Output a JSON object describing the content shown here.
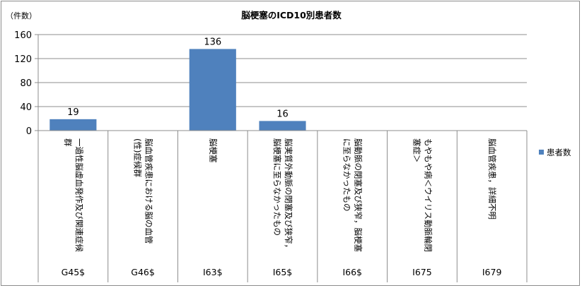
{
  "chart_data": {
    "type": "bar",
    "title": "脳梗塞のICD10別患者数",
    "yunit": "（件数）",
    "ylim": [
      0,
      160
    ],
    "yticks": [
      0,
      40,
      80,
      120,
      160
    ],
    "grid": true,
    "legend_position": "right",
    "categories": [
      {
        "code": "G45$",
        "lines": [
          "一過性脳虚血発作及び関連症候",
          "群"
        ]
      },
      {
        "code": "G46$",
        "lines": [
          "脳血管疾患における脳の血管",
          "(性)症候群"
        ]
      },
      {
        "code": "I63$",
        "lines": [
          "脳梗塞"
        ]
      },
      {
        "code": "I65$",
        "lines": [
          "脳実質外動脈の閉塞及び狭窄，",
          "脳梗塞に至らなかったもの"
        ]
      },
      {
        "code": "I66$",
        "lines": [
          "脳動脈の閉塞及び狭窄，脳梗塞",
          "に至らなかったもの"
        ]
      },
      {
        "code": "I675",
        "lines": [
          "もやもや病＜ウイリス動脈輪閉",
          "塞症＞"
        ]
      },
      {
        "code": "I679",
        "lines": [
          "脳血管疾患，詳細不明"
        ]
      }
    ],
    "series": [
      {
        "name": "患者数",
        "values": [
          19,
          null,
          136,
          16,
          null,
          null,
          null
        ],
        "color": "#4f81bd"
      }
    ],
    "data_labels": [
      "19",
      "",
      "136",
      "16",
      "",
      "",
      ""
    ]
  }
}
